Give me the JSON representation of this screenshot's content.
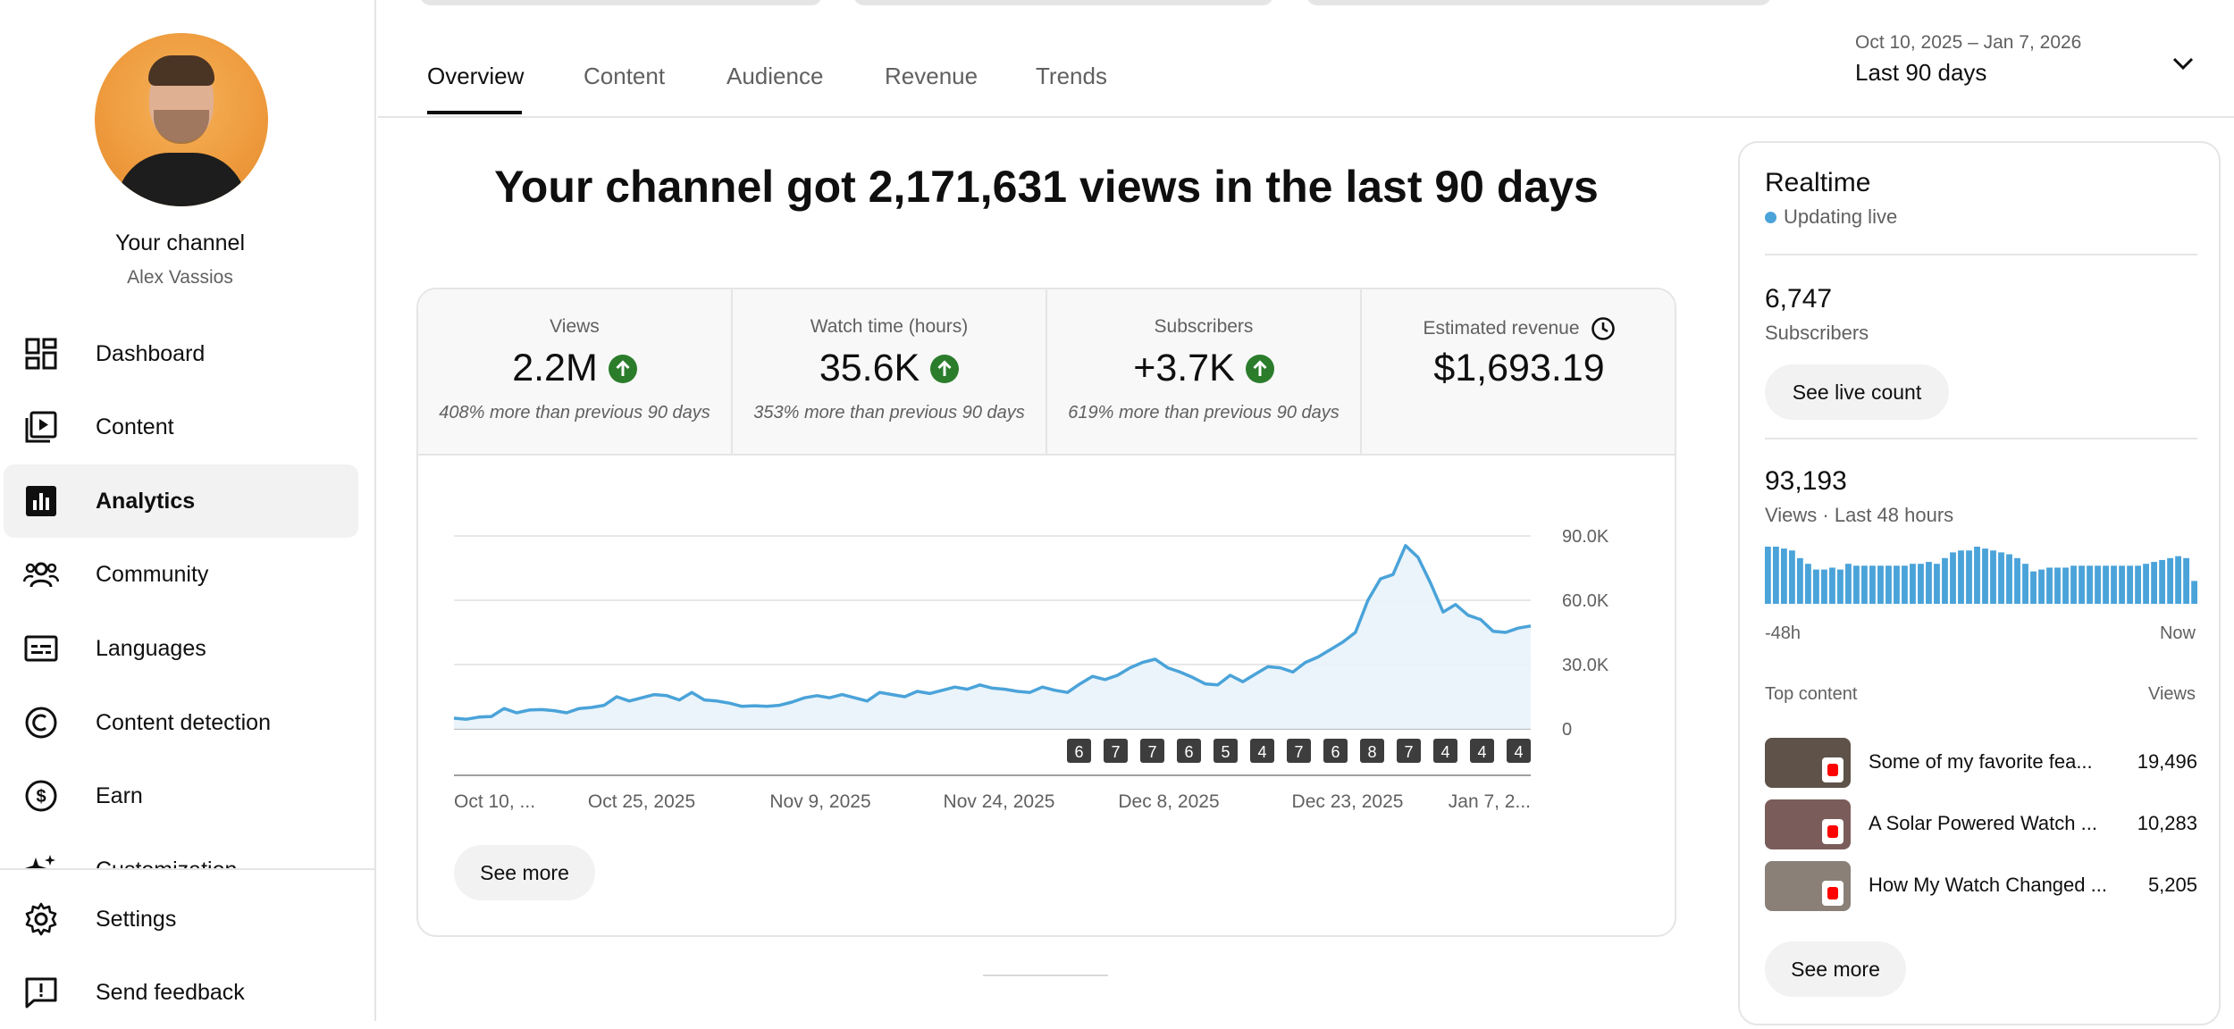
{
  "channel": {
    "title": "Your channel",
    "name": "Alex Vassios"
  },
  "nav": {
    "items": [
      {
        "label": "Dashboard",
        "icon": "dashboard-icon"
      },
      {
        "label": "Content",
        "icon": "content-icon"
      },
      {
        "label": "Analytics",
        "icon": "analytics-icon"
      },
      {
        "label": "Community",
        "icon": "community-icon"
      },
      {
        "label": "Languages",
        "icon": "subtitles-icon"
      },
      {
        "label": "Content detection",
        "icon": "copyright-icon"
      },
      {
        "label": "Earn",
        "icon": "dollar-icon"
      },
      {
        "label": "Customization",
        "icon": "sparkle-icon"
      }
    ],
    "bottom": [
      {
        "label": "Settings",
        "icon": "gear-icon"
      },
      {
        "label": "Send feedback",
        "icon": "feedback-icon"
      }
    ]
  },
  "tabs": [
    "Overview",
    "Content",
    "Audience",
    "Revenue",
    "Trends"
  ],
  "date_range": {
    "range": "Oct 10, 2025 – Jan 7, 2026",
    "label": "Last 90 days"
  },
  "headline": "Your channel got 2,171,631 views in the last 90 days",
  "metrics": [
    {
      "label": "Views",
      "value": "2.2M",
      "note": "408% more than previous 90 days",
      "trend": "up"
    },
    {
      "label": "Watch time (hours)",
      "value": "35.6K",
      "note": "353% more than previous 90 days",
      "trend": "up"
    },
    {
      "label": "Subscribers",
      "value": "+3.7K",
      "note": "619% more than previous 90 days",
      "trend": "up"
    },
    {
      "label": "Estimated revenue",
      "value": "$1,693.19",
      "note": "",
      "trend": "none"
    }
  ],
  "chart_data": {
    "type": "area",
    "x_ticks": [
      "Oct 10, ...",
      "Oct 25, 2025",
      "Nov 9, 2025",
      "Nov 24, 2025",
      "Dec 8, 2025",
      "Dec 23, 2025",
      "Jan 7, 2..."
    ],
    "y_ticks": [
      "0",
      "30.0K",
      "60.0K",
      "90.0K"
    ],
    "ylim": [
      0,
      90000
    ],
    "grid": true,
    "values": [
      5000,
      4500,
      5500,
      5800,
      9500,
      7500,
      8800,
      9000,
      8500,
      7500,
      9500,
      10000,
      11000,
      15000,
      13000,
      14500,
      16000,
      15500,
      13500,
      17000,
      13500,
      13000,
      12000,
      10500,
      10800,
      10500,
      11000,
      12500,
      14500,
      15500,
      14500,
      16000,
      14500,
      13000,
      17000,
      16000,
      15000,
      17500,
      16500,
      18000,
      19500,
      18500,
      20500,
      19000,
      18500,
      17500,
      17000,
      19500,
      18000,
      17000,
      21000,
      24500,
      23000,
      25000,
      28500,
      31000,
      32500,
      28500,
      26500,
      24000,
      21000,
      20500,
      25000,
      22000,
      25500,
      29000,
      28500,
      26500,
      31000,
      33500,
      37000,
      40500,
      45000,
      60000,
      70000,
      72000,
      85500,
      80000,
      68000,
      54500,
      58000,
      53000,
      51000,
      45500,
      45000,
      47000,
      48000
    ],
    "annotation_markers": [
      "6",
      "7",
      "7",
      "6",
      "5",
      "4",
      "7",
      "6",
      "8",
      "7",
      "4",
      "4",
      "4"
    ]
  },
  "buttons": {
    "see_more": "See more",
    "see_live_count": "See live count",
    "see_more_rt": "See more"
  },
  "realtime": {
    "title": "Realtime",
    "status": "Updating live",
    "subscribers_value": "6,747",
    "subscribers_label": "Subscribers",
    "views_value": "93,193",
    "views_label": "Views · Last 48 hours",
    "axis_start": "-48h",
    "axis_end": "Now",
    "top_content_label": "Top content",
    "views_col_label": "Views",
    "bars": [
      30,
      30,
      29,
      28,
      24,
      21,
      18,
      18,
      19,
      18,
      21,
      20,
      20,
      20,
      20,
      20,
      20,
      20,
      21,
      21,
      22,
      21,
      24,
      27,
      28,
      28,
      30,
      29,
      28,
      27,
      26,
      24,
      21,
      17,
      18,
      19,
      19,
      19,
      20,
      20,
      20,
      20,
      20,
      20,
      20,
      20,
      20,
      21,
      22,
      23,
      24,
      25,
      24,
      12
    ],
    "top_items": [
      {
        "title": "Some of my favorite fea...",
        "views": "19,496"
      },
      {
        "title": "A Solar Powered Watch ...",
        "views": "10,283"
      },
      {
        "title": "How My Watch Changed ...",
        "views": "5,205"
      }
    ]
  },
  "colors": {
    "accent_line": "#4aa3d9",
    "up_green": "#2b7d2b",
    "active_bg": "#f2f2f2"
  }
}
